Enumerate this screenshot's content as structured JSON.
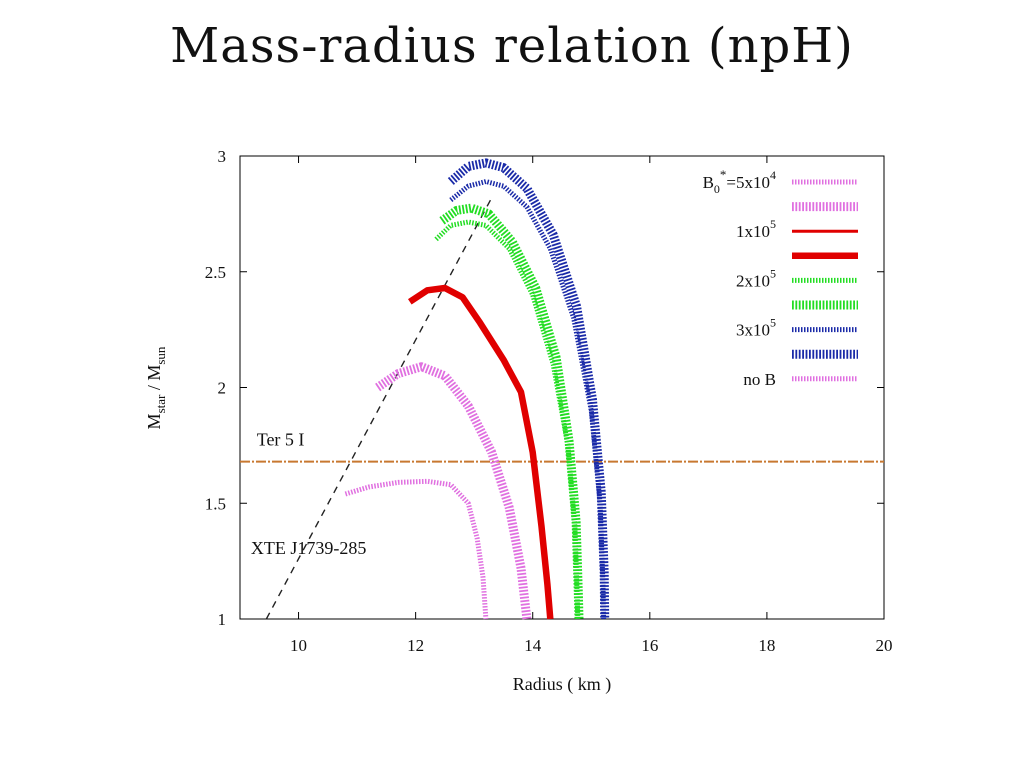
{
  "slide": {
    "title": "Mass-radius relation (npH)"
  },
  "chart_data": {
    "type": "line",
    "xlabel": "Radius ( km )",
    "ylabel_main": "M",
    "ylabel_sub1": "star",
    "ylabel_mid": " / M",
    "ylabel_sub2": "sun",
    "xlim": [
      9,
      20
    ],
    "ylim": [
      1,
      3
    ],
    "xticks": [
      10,
      12,
      14,
      16,
      18,
      20
    ],
    "yticks": [
      1,
      1.5,
      2,
      2.5,
      3
    ],
    "ytick_labels": [
      "1",
      "1.5",
      "2",
      "2.5",
      "3"
    ],
    "legend_position": "top-right",
    "legend": [
      {
        "label_base": "B",
        "label_sub": "0",
        "label_sup": "*",
        "label_rest": "=5x10",
        "label_exp": "4",
        "color": "#e070e0",
        "style": "thin-dotted"
      },
      {
        "label_base": "",
        "label_sub": "",
        "label_sup": "",
        "label_rest": "",
        "label_exp": "",
        "color": "#e070e0",
        "style": "thick-dotted"
      },
      {
        "label_base": "",
        "label_sub": "",
        "label_sup": "",
        "label_rest": "1x10",
        "label_exp": "5",
        "color": "#e00000",
        "style": "thin-solid"
      },
      {
        "label_base": "",
        "label_sub": "",
        "label_sup": "",
        "label_rest": "",
        "label_exp": "",
        "color": "#e00000",
        "style": "thick-solid"
      },
      {
        "label_base": "",
        "label_sub": "",
        "label_sup": "",
        "label_rest": "2x10",
        "label_exp": "5",
        "color": "#22dd22",
        "style": "thin-dotted"
      },
      {
        "label_base": "",
        "label_sub": "",
        "label_sup": "",
        "label_rest": "",
        "label_exp": "",
        "color": "#22dd22",
        "style": "thick-dotted"
      },
      {
        "label_base": "",
        "label_sub": "",
        "label_sup": "",
        "label_rest": "3x10",
        "label_exp": "5",
        "color": "#1a2aa8",
        "style": "thin-dotted"
      },
      {
        "label_base": "",
        "label_sub": "",
        "label_sup": "",
        "label_rest": "",
        "label_exp": "",
        "color": "#1a2aa8",
        "style": "thick-dotted"
      },
      {
        "label_base": "",
        "label_sub": "",
        "label_sup": "",
        "label_rest": "no B",
        "label_exp": "",
        "color": "#e070e0",
        "style": "thin-dotted"
      }
    ],
    "series": [
      {
        "color": "#e070e0",
        "style": "thin-dotted",
        "points": [
          [
            10.8,
            1.54
          ],
          [
            11.2,
            1.57
          ],
          [
            11.7,
            1.59
          ],
          [
            12.2,
            1.595
          ],
          [
            12.6,
            1.58
          ],
          [
            12.9,
            1.5
          ],
          [
            13.05,
            1.35
          ],
          [
            13.15,
            1.18
          ],
          [
            13.2,
            1.0
          ]
        ]
      },
      {
        "color": "#e070e0",
        "style": "thick-dotted",
        "points": [
          [
            11.35,
            2.0
          ],
          [
            11.7,
            2.06
          ],
          [
            12.1,
            2.09
          ],
          [
            12.5,
            2.05
          ],
          [
            12.9,
            1.92
          ],
          [
            13.3,
            1.72
          ],
          [
            13.6,
            1.48
          ],
          [
            13.8,
            1.22
          ],
          [
            13.9,
            1.0
          ]
        ]
      },
      {
        "color": "#e00000",
        "style": "thick-solid",
        "points": [
          [
            11.9,
            2.37
          ],
          [
            12.2,
            2.42
          ],
          [
            12.5,
            2.43
          ],
          [
            12.8,
            2.39
          ],
          [
            13.1,
            2.28
          ],
          [
            13.5,
            2.12
          ],
          [
            13.8,
            1.98
          ],
          [
            14.0,
            1.72
          ],
          [
            14.15,
            1.4
          ],
          [
            14.25,
            1.15
          ],
          [
            14.3,
            1.0
          ]
        ]
      },
      {
        "color": "#22dd22",
        "style": "thin-dotted",
        "points": [
          [
            12.35,
            2.64
          ],
          [
            12.6,
            2.7
          ],
          [
            12.9,
            2.715
          ],
          [
            13.2,
            2.7
          ],
          [
            13.6,
            2.6
          ],
          [
            14.0,
            2.4
          ],
          [
            14.35,
            2.1
          ],
          [
            14.6,
            1.75
          ],
          [
            14.72,
            1.4
          ],
          [
            14.76,
            1.1
          ],
          [
            14.77,
            1.0
          ]
        ]
      },
      {
        "color": "#22dd22",
        "style": "thick-dotted",
        "points": [
          [
            12.45,
            2.72
          ],
          [
            12.7,
            2.765
          ],
          [
            12.95,
            2.775
          ],
          [
            13.25,
            2.75
          ],
          [
            13.65,
            2.63
          ],
          [
            14.05,
            2.43
          ],
          [
            14.4,
            2.13
          ],
          [
            14.62,
            1.77
          ],
          [
            14.74,
            1.42
          ],
          [
            14.78,
            1.1
          ],
          [
            14.79,
            1.0
          ]
        ]
      },
      {
        "color": "#1a2aa8",
        "style": "thin-dotted",
        "points": [
          [
            12.6,
            2.81
          ],
          [
            12.9,
            2.87
          ],
          [
            13.2,
            2.89
          ],
          [
            13.5,
            2.87
          ],
          [
            13.9,
            2.78
          ],
          [
            14.3,
            2.6
          ],
          [
            14.7,
            2.3
          ],
          [
            15.0,
            1.9
          ],
          [
            15.15,
            1.5
          ],
          [
            15.2,
            1.15
          ],
          [
            15.21,
            1.0
          ]
        ]
      },
      {
        "color": "#1a2aa8",
        "style": "thick-dotted",
        "points": [
          [
            12.6,
            2.89
          ],
          [
            12.9,
            2.955
          ],
          [
            13.2,
            2.97
          ],
          [
            13.5,
            2.95
          ],
          [
            13.9,
            2.86
          ],
          [
            14.35,
            2.66
          ],
          [
            14.75,
            2.35
          ],
          [
            15.02,
            1.95
          ],
          [
            15.17,
            1.55
          ],
          [
            15.22,
            1.2
          ],
          [
            15.23,
            1.0
          ]
        ]
      }
    ],
    "reference_lines": [
      {
        "kind": "dashed",
        "color": "#222222",
        "from": [
          9.45,
          1.0
        ],
        "to": [
          13.3,
          2.82
        ]
      },
      {
        "kind": "horizontal",
        "color": "#c87830",
        "y": 1.68
      }
    ],
    "annotations": [
      {
        "text": "Ter 5 I",
        "x": 9.2,
        "y": 1.75
      },
      {
        "text": "XTE J1739-285",
        "x": 9.1,
        "y": 1.28
      }
    ]
  }
}
